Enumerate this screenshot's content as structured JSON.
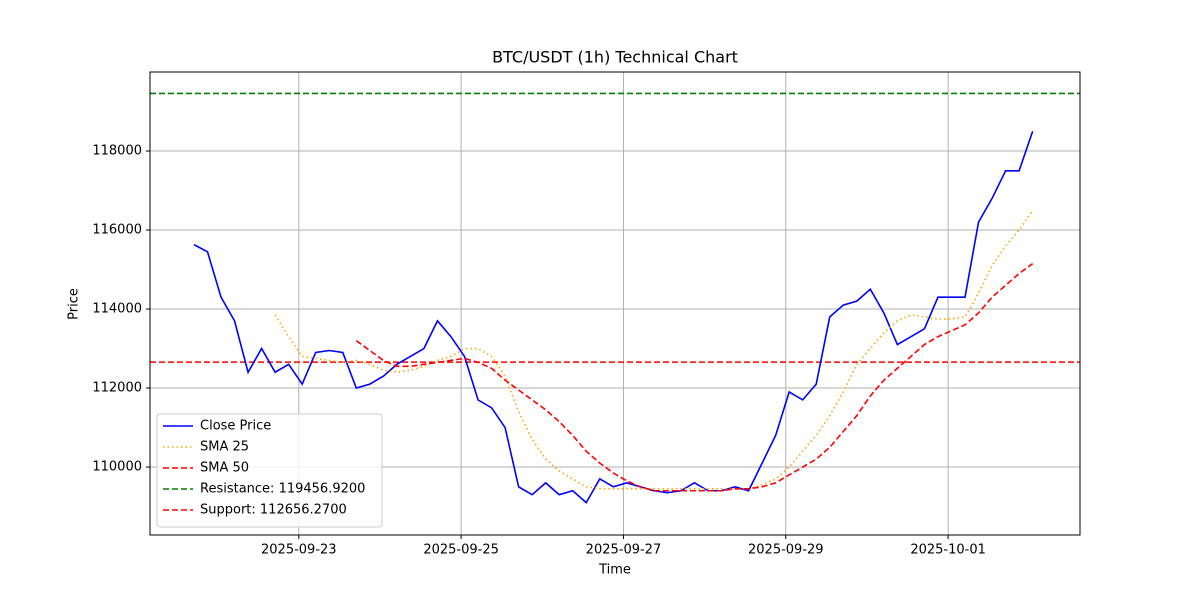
{
  "chart_data": {
    "type": "line",
    "title": "BTC/USDT (1h) Technical Chart",
    "x_label": "Time",
    "y_label": "Price",
    "x": [
      "2025-09-21 17:00",
      "2025-09-21 21:00",
      "2025-09-22 01:00",
      "2025-09-22 05:00",
      "2025-09-22 09:00",
      "2025-09-22 13:00",
      "2025-09-22 17:00",
      "2025-09-22 21:00",
      "2025-09-23 01:00",
      "2025-09-23 05:00",
      "2025-09-23 09:00",
      "2025-09-23 13:00",
      "2025-09-23 17:00",
      "2025-09-23 21:00",
      "2025-09-24 01:00",
      "2025-09-24 05:00",
      "2025-09-24 09:00",
      "2025-09-24 13:00",
      "2025-09-24 17:00",
      "2025-09-24 21:00",
      "2025-09-25 01:00",
      "2025-09-25 05:00",
      "2025-09-25 09:00",
      "2025-09-25 13:00",
      "2025-09-25 17:00",
      "2025-09-25 21:00",
      "2025-09-26 01:00",
      "2025-09-26 05:00",
      "2025-09-26 09:00",
      "2025-09-26 13:00",
      "2025-09-26 17:00",
      "2025-09-26 21:00",
      "2025-09-27 01:00",
      "2025-09-27 05:00",
      "2025-09-27 09:00",
      "2025-09-27 13:00",
      "2025-09-27 17:00",
      "2025-09-27 21:00",
      "2025-09-28 01:00",
      "2025-09-28 05:00",
      "2025-09-28 09:00",
      "2025-09-28 13:00",
      "2025-09-28 17:00",
      "2025-09-28 21:00",
      "2025-09-29 01:00",
      "2025-09-29 05:00",
      "2025-09-29 09:00",
      "2025-09-29 13:00",
      "2025-09-29 17:00",
      "2025-09-29 21:00",
      "2025-09-30 01:00",
      "2025-09-30 05:00",
      "2025-09-30 09:00",
      "2025-09-30 13:00",
      "2025-09-30 17:00",
      "2025-09-30 21:00",
      "2025-10-01 01:00",
      "2025-10-01 05:00",
      "2025-10-01 09:00",
      "2025-10-01 13:00",
      "2025-10-01 17:00",
      "2025-10-01 21:00",
      "2025-10-02 01:00"
    ],
    "series": [
      {
        "name": "Close Price",
        "color": "#0000ff",
        "linestyle": "solid",
        "values": [
          115630,
          115450,
          114300,
          113700,
          112400,
          113000,
          112400,
          112600,
          112100,
          112900,
          112950,
          112900,
          112000,
          112100,
          112300,
          112600,
          112800,
          113000,
          113700,
          113300,
          112800,
          111700,
          111500,
          111000,
          109500,
          109300,
          109600,
          109300,
          109400,
          109100,
          109700,
          109500,
          109600,
          109500,
          109400,
          109350,
          109400,
          109600,
          109400,
          109400,
          109500,
          109400,
          110100,
          110800,
          111900,
          111700,
          112100,
          113800,
          114100,
          114200,
          114500,
          113900,
          113100,
          113300,
          113500,
          114300,
          114300,
          114300,
          116200,
          116800,
          117500,
          117500,
          118500
        ]
      },
      {
        "name": "SMA 25",
        "color": "#ffa500",
        "linestyle": "dotted",
        "values": [
          null,
          null,
          null,
          null,
          null,
          null,
          113850,
          113300,
          112800,
          112750,
          112700,
          112650,
          112700,
          112600,
          112450,
          112400,
          112450,
          112550,
          112700,
          112800,
          113000,
          113000,
          112800,
          112300,
          111400,
          110700,
          110200,
          109900,
          109700,
          109500,
          109450,
          109450,
          109450,
          109450,
          109450,
          109450,
          109450,
          109450,
          109450,
          109450,
          109450,
          109450,
          109550,
          109700,
          110000,
          110400,
          110800,
          111300,
          111900,
          112600,
          113000,
          113400,
          113700,
          113850,
          113800,
          113750,
          113750,
          113800,
          114400,
          115100,
          115600,
          116000,
          116500
        ]
      },
      {
        "name": "SMA 50",
        "color": "#ff0000",
        "linestyle": "dashed",
        "values": [
          null,
          null,
          null,
          null,
          null,
          null,
          null,
          null,
          null,
          null,
          null,
          null,
          113200,
          112950,
          112700,
          112550,
          112550,
          112600,
          112650,
          112700,
          112750,
          112650,
          112500,
          112200,
          111950,
          111700,
          111450,
          111150,
          110800,
          110400,
          110100,
          109850,
          109650,
          109500,
          109400,
          109400,
          109400,
          109400,
          109400,
          109400,
          109450,
          109450,
          109500,
          109600,
          109800,
          110000,
          110200,
          110500,
          110900,
          111300,
          111800,
          112200,
          112500,
          112800,
          113100,
          113300,
          113450,
          113600,
          113900,
          114300,
          114600,
          114900,
          115150
        ]
      }
    ],
    "hlines": [
      {
        "name": "Resistance: 119456.9200",
        "color": "#008000",
        "linestyle": "dashed",
        "value": 119456.92
      },
      {
        "name": "Support: 112656.2700",
        "color": "#ff0000",
        "linestyle": "dashed",
        "value": 112656.27
      }
    ],
    "xlim": [
      "2025-09-21 04:00",
      "2025-10-02 15:00"
    ],
    "xticks": [
      "2025-09-23",
      "2025-09-25",
      "2025-09-27",
      "2025-09-29",
      "2025-10-01"
    ],
    "ylim": [
      108280,
      120000
    ],
    "yticks": [
      110000,
      112000,
      114000,
      116000,
      118000
    ],
    "grid": true,
    "legend": "lower left"
  }
}
